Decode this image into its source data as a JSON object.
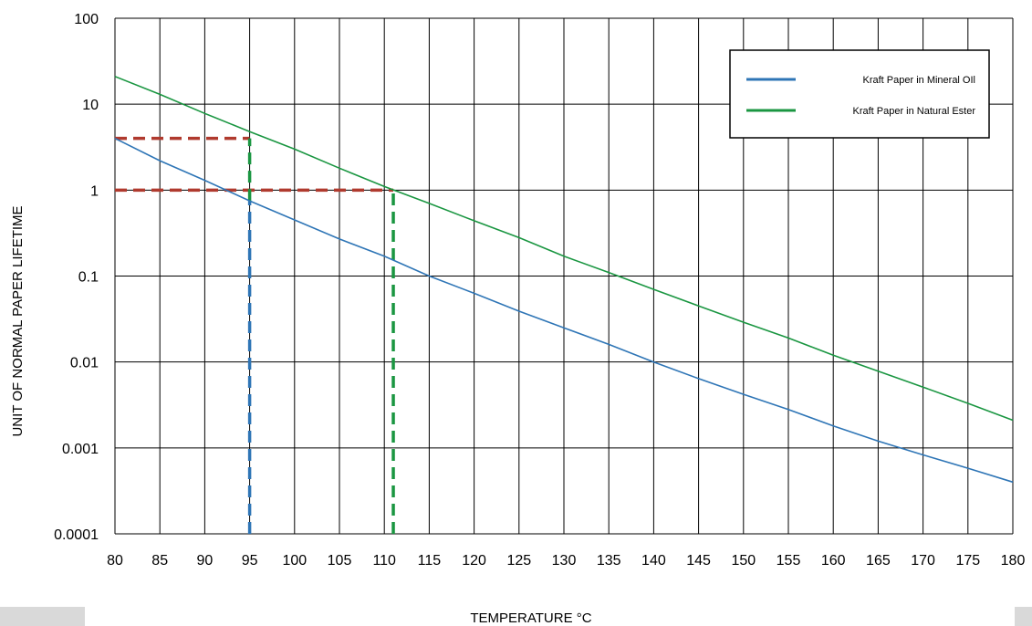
{
  "chart_data": {
    "type": "line",
    "xlabel": "TEMPERATURE °C",
    "ylabel": "UNIT OF NORMAL PAPER LIFETIME",
    "xlim": [
      80,
      180
    ],
    "ylim": [
      0.0001,
      100
    ],
    "yscale": "log",
    "grid": true,
    "legend_position": "top-right",
    "x_ticks": [
      "80",
      "85",
      "90",
      "95",
      "100",
      "105",
      "110",
      "115",
      "120",
      "125",
      "130",
      "135",
      "140",
      "145",
      "150",
      "155",
      "160",
      "165",
      "170",
      "175",
      "180"
    ],
    "y_ticks": [
      "100",
      "10",
      "1",
      "0.1",
      "0.01",
      "0.001",
      "0.0001"
    ],
    "series": [
      {
        "name": "Kraft Paper in Mineral OIl",
        "color": "#2e75b6",
        "x": [
          80,
          85,
          90,
          95,
          100,
          105,
          110,
          115,
          120,
          125,
          130,
          135,
          140,
          145,
          150,
          155,
          160,
          165,
          170,
          175,
          180
        ],
        "y": [
          4.0,
          2.2,
          1.3,
          0.75,
          0.45,
          0.27,
          0.17,
          0.1,
          0.063,
          0.039,
          0.025,
          0.016,
          0.01,
          0.0064,
          0.0042,
          0.0028,
          0.0018,
          0.0012,
          0.00083,
          0.00058,
          0.0004
        ]
      },
      {
        "name": "Kraft Paper in Natural Ester",
        "color": "#1a9641",
        "x": [
          80,
          85,
          90,
          95,
          100,
          105,
          110,
          115,
          120,
          125,
          130,
          135,
          140,
          145,
          150,
          155,
          160,
          165,
          170,
          175,
          180
        ],
        "y": [
          21,
          13,
          7.8,
          4.8,
          3.0,
          1.8,
          1.1,
          0.7,
          0.44,
          0.28,
          0.17,
          0.11,
          0.07,
          0.045,
          0.029,
          0.019,
          0.012,
          0.0078,
          0.0051,
          0.0033,
          0.0021
        ]
      }
    ],
    "reference_lines": [
      {
        "color": "#b03a2e",
        "orientation": "horizontal",
        "value": 4,
        "from": 80,
        "to": 95
      },
      {
        "color": "#b03a2e",
        "orientation": "horizontal",
        "value": 1,
        "from": 80,
        "to": 111
      },
      {
        "color": "#2e75b6",
        "orientation": "vertical",
        "value": 95,
        "from": 0.0001,
        "to": 0.75
      },
      {
        "color": "#1a9641",
        "orientation": "vertical",
        "value": 95,
        "from": 0.75,
        "to": 4
      },
      {
        "color": "#1a9641",
        "orientation": "vertical",
        "value": 111,
        "from": 0.0001,
        "to": 1
      }
    ]
  }
}
